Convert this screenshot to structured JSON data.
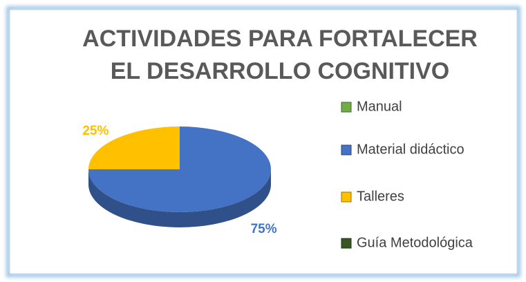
{
  "chart_data": {
    "type": "pie",
    "title": [
      "ACTIVIDADES PARA FORTALECER",
      "EL DESARROLLO COGNITIVO"
    ],
    "categories": [
      "Manual",
      "Material didáctico",
      "Talleres",
      "Guía Metodológica"
    ],
    "values": [
      0,
      75,
      25,
      0
    ],
    "value_labels": [
      null,
      "75%",
      "25%",
      null
    ],
    "colors": [
      "#70ad47",
      "#4472c4",
      "#ffc000",
      "#375623"
    ],
    "legend": "right"
  }
}
